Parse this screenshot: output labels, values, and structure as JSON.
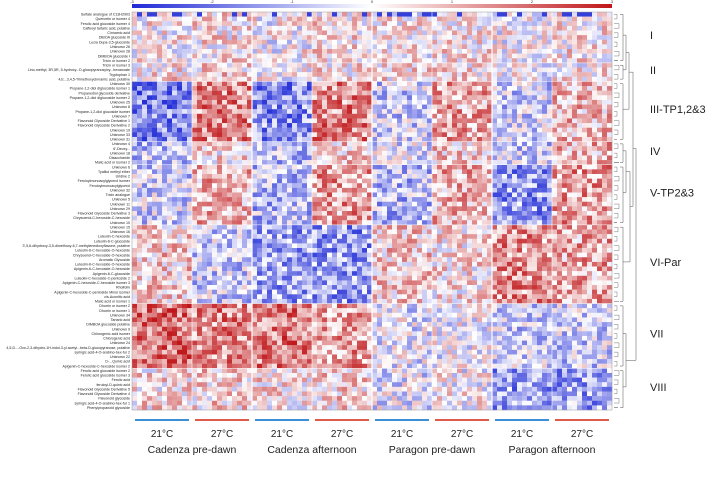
{
  "chart_data": {
    "type": "heatmap",
    "colorscale": {
      "low": "#1f2ad6",
      "mid": "#ffffff",
      "high": "#c0171a"
    },
    "colorbar_ticks": [
      "-3",
      "-2",
      "-1",
      "0",
      "1",
      "2",
      "3"
    ],
    "row_labels": [
      "Sulfate analogue of C13H2903",
      "Quercetin or isomer 4",
      "Ferulic acid glucoside isomer 4",
      "Caffeoyl tartaric acid, putative",
      "Cinnamic acid",
      "DIBOA glucoside III",
      "Lucia Dupa-3,5-glucoside",
      "Unknown 26",
      "Unknown 28",
      "DIMBOA glucoside I",
      "Tricin or isomer 2",
      "Tricin or isomer 3",
      "Lino-methyl, 3R,5R, 5-hydroxy...D-glucopyranosylxy...hexanoate",
      "Tryptophan 1",
      "4,E...3,4,5-Trimethoxycinnamic acid, putative",
      "Unknown 30",
      "Propane-1,2-diol diglucoside isomer 1",
      "Propanediol glycoside derivative",
      "Propane-1,2-diol diglucoside isomer 2",
      "Unknown 25",
      "Unknown 8",
      "Propane-1,2-diol glucoside isomer",
      "Unknown 7",
      "Flavonoid Glycoside Derivative 1",
      "Flavonoid Glycoside Derivative 2",
      "Unknown 19",
      "Unknown 33",
      "Unknown 31",
      "Unknown 4",
      "6'-Deoxy...",
      "Unknown 18",
      "Disaccharide",
      "Malic acid or isomer 2",
      "Unknown 6",
      "Tyalitol methyl ether",
      "Uridine 2",
      "Feruloylmonoacylglycerol isomer",
      "Feruloylmonoacylglycerol",
      "Unknown 32",
      "Tricin analogue",
      "Unknown 5",
      "Unknown 11",
      "Unknown 29",
      "Flavonoid Glycoside Derivative 3",
      "Chrysoeriol-C-hexoside-C-hexoside",
      "Unknown 10",
      "Unknown 15",
      "Unknown 16",
      "Luteolin-C-hexoside",
      "Luteolin-6-C-glucoside",
      "3',5,6-dihydroxy-3,5-dimethoxy-6,7-methylenedioxyflavone, putative",
      "Luteolin-6-C-hexoside-O-hexoside",
      "Chrysoeriol-C-hexoside-O-hexoside",
      "Aromatic Glycoside",
      "Luteolin-6-C-hexoside-O-hexoside",
      "Apigenin-6-C-hexoside-O-hexoside",
      "Apigenin-6-C-glucoside",
      "Luteolin-C-hexoside-C-pentoside 2",
      "Apigenin-C-hexoside-C-hexoside isomer 3",
      "Rhoifolin",
      "Apigenin-C-hexoside-C-pentoside Minor isomer",
      "cis-Aconitic acid",
      "Malic acid or isomer 1",
      "Dhurrin or isomer 2",
      "Dhurrin or isomer 1",
      "Unknown 34",
      "Tartaric acid",
      "DIMBOA glucoside putative",
      "Unknown 9",
      "Chlorogenic acid isomer",
      "Chlorogenic acid",
      "Unknown 24",
      "4,5-D...-Oxo-2,3-dihydro-1H-indol-3-yl acetyl...beta-D-glucopyranose, putative",
      "syringic acid-4-O-arabino-hex-fur 2",
      "Unknown 22",
      "D-...Quinic acid",
      "Apigenin-C-hexoside-C-hexoside isomer 2",
      "Ferulic acid glucoside isomer 2",
      "Ferulic acid glucoside isomer 3",
      "Ferulic acid",
      "feruloyl-D-quinic acid",
      "Flavonoid Glycoside Derivative 5",
      "Flavonoid Glycoside Derivative 4",
      "Flavonoid glycoside",
      "syringic acid-4-O-arabino-hex-fur 1",
      "Phenylpropanoid glycoside"
    ],
    "clusters": [
      "I",
      "II",
      "III-TP1,2&3",
      "IV",
      "V-TP2&3",
      "VI-Par",
      "VII",
      "VIII"
    ],
    "temperatures": [
      "21°C",
      "27°C",
      "21°C",
      "27°C",
      "21°C",
      "27°C",
      "21°C",
      "27°C"
    ],
    "groups": [
      "Cadenza pre-dawn",
      "Cadenza afternoon",
      "Paragon pre-dawn",
      "Paragon afternoon"
    ],
    "group_colors": {
      "21°C": "#3d8fd6",
      "27°C": "#e05a4c"
    }
  }
}
